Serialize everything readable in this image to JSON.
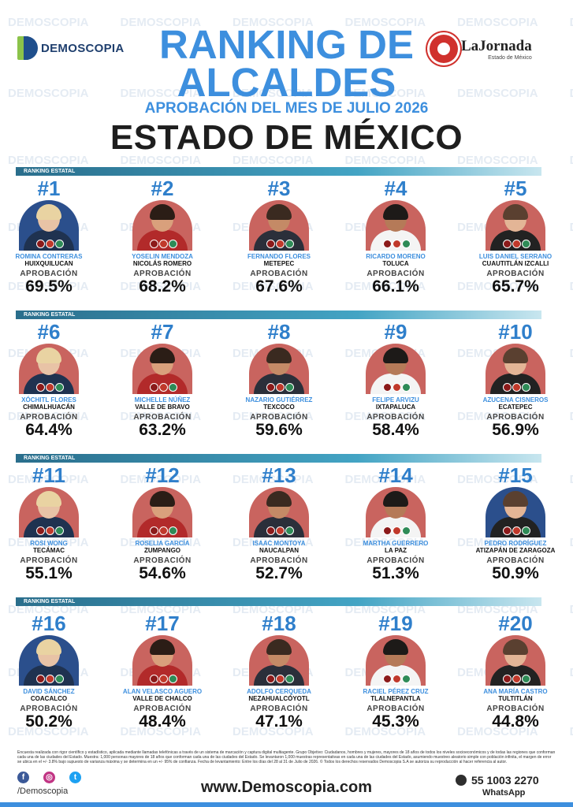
{
  "brand": {
    "left_logo": "DEMOSCOPIA",
    "right_logo": "LaJornada",
    "right_logo_sub": "Estado de México"
  },
  "watermark": "DEMOSCOPIA",
  "header": {
    "title_line1": "RANKING DE",
    "title_line2": "ALCALDES",
    "subtitle": "APROBACIÓN DEL MES DE JULIO 2026",
    "state": "ESTADO DE MÉXICO"
  },
  "section_label": "RANKING ESTATAL",
  "approval_label": "APROBACIÓN",
  "rankings": [
    {
      "rank": "#1",
      "name": "ROMINA CONTRERAS",
      "municipality": "HUIXQUILUCAN",
      "approval": "69.5%",
      "approval_value": 69.5
    },
    {
      "rank": "#2",
      "name": "YOSELIN MENDOZA",
      "municipality": "NICOLÁS ROMERO",
      "approval": "68.2%",
      "approval_value": 68.2
    },
    {
      "rank": "#3",
      "name": "FERNANDO FLORES",
      "municipality": "METEPEC",
      "approval": "67.6%",
      "approval_value": 67.6
    },
    {
      "rank": "#4",
      "name": "RICARDO MORENO",
      "municipality": "TOLUCA",
      "approval": "66.1%",
      "approval_value": 66.1
    },
    {
      "rank": "#5",
      "name": "LUIS DANIEL SERRANO",
      "municipality": "CUAUTITLÁN IZCALLI",
      "approval": "65.7%",
      "approval_value": 65.7
    },
    {
      "rank": "#6",
      "name": "XÓCHITL FLORES",
      "municipality": "CHIMALHUACÁN",
      "approval": "64.4%",
      "approval_value": 64.4
    },
    {
      "rank": "#7",
      "name": "MICHELLE NÚÑEZ",
      "municipality": "VALLE DE BRAVO",
      "approval": "63.2%",
      "approval_value": 63.2
    },
    {
      "rank": "#8",
      "name": "NAZARIO GUTIÉRREZ",
      "municipality": "TEXCOCO",
      "approval": "59.6%",
      "approval_value": 59.6
    },
    {
      "rank": "#9",
      "name": "FELIPE ARVIZU",
      "municipality": "IXTAPALUCA",
      "approval": "58.4%",
      "approval_value": 58.4
    },
    {
      "rank": "#10",
      "name": "AZUCENA CISNEROS",
      "municipality": "ECATEPEC",
      "approval": "56.9%",
      "approval_value": 56.9
    },
    {
      "rank": "#11",
      "name": "ROSI WONG",
      "municipality": "TECÁMAC",
      "approval": "55.1%",
      "approval_value": 55.1
    },
    {
      "rank": "#12",
      "name": "ROSELIA GARCÍA",
      "municipality": "ZUMPANGO",
      "approval": "54.6%",
      "approval_value": 54.6
    },
    {
      "rank": "#13",
      "name": "ISAAC MONTOYA",
      "municipality": "NAUCALPAN",
      "approval": "52.7%",
      "approval_value": 52.7
    },
    {
      "rank": "#14",
      "name": "MARTHA GUERRERO",
      "municipality": "LA PAZ",
      "approval": "51.3%",
      "approval_value": 51.3
    },
    {
      "rank": "#15",
      "name": "PEDRO RODRÍGUEZ",
      "municipality": "ATIZAPÁN DE ZARAGOZA",
      "approval": "50.9%",
      "approval_value": 50.9
    },
    {
      "rank": "#16",
      "name": "DAVID SÁNCHEZ",
      "municipality": "COACALCO",
      "approval": "50.2%",
      "approval_value": 50.2
    },
    {
      "rank": "#17",
      "name": "ALAN VELASCO AGUERO",
      "municipality": "VALLE DE CHALCO",
      "approval": "48.4%",
      "approval_value": 48.4
    },
    {
      "rank": "#18",
      "name": "ADOLFO CERQUEDA",
      "municipality": "NEZAHUALCÓYOTL",
      "approval": "47.1%",
      "approval_value": 47.1
    },
    {
      "rank": "#19",
      "name": "RACIEL PÉREZ CRUZ",
      "municipality": "TLALNEPANTLA",
      "approval": "45.3%",
      "approval_value": 45.3
    },
    {
      "rank": "#20",
      "name": "ANA MARÍA CASTRO",
      "municipality": "TULTITLÁN",
      "approval": "44.8%",
      "approval_value": 44.8
    }
  ],
  "footer": {
    "methodology": "Encuesta realizada con rigor científico y estadístico, aplicada mediante llamadas telefónicas a través de un sistema de marcación y captura digital multiagente. Grupo Objetivo: Ciudadanos, hombres y mujeres, mayores de 18 años de todos los niveles socioeconómicos y de todas las regiones que conforman cada una de las ciudades del Estado. Muestra: 1,000 personas mayores de 18 años que conforman cada una de las ciudades del Estado. Se levantaron 1,000 muestras representativas en cada una de las ciudades del Estado, asumiendo muestreo aleatorio simple con población infinita, el margen de error se ubica en el +/- 3.8% bajo supuesto de varianza máxima y se determina en un +/- 95% de confianza. Fecha de levantamiento: Entre los días del 28 al 31 de Julio de 2026. © Todos los derechos reservados Demoscopia S.A se autoriza su reproducción al hacer referencia al autor.",
    "handle": "/Demoscopia",
    "website": "www.Demoscopia.com",
    "phone": "55 1003 2270",
    "whatsapp_label": "WhatsApp"
  },
  "colors": {
    "accent": "#3d8fde",
    "section_bar": "#2a6e8c",
    "photo_bg": "#c9645f"
  }
}
